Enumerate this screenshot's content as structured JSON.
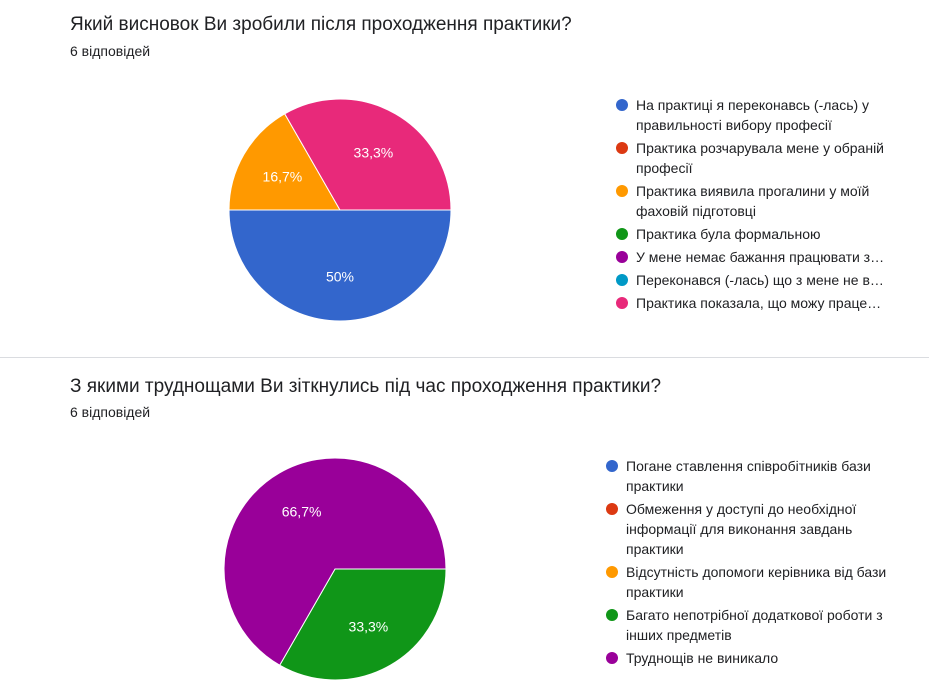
{
  "colors": {
    "blue": "#3366cc",
    "red": "#dc3912",
    "orange": "#ff9900",
    "green": "#109618",
    "purple": "#990099",
    "cyan": "#0099c6",
    "pink": "#dd4477"
  },
  "charts": [
    {
      "title": "Який висновок Ви зробили після проходження практики?",
      "responses": "6 відповідей",
      "chart_data": {
        "type": "pie",
        "legend_position": "right",
        "slices": [
          {
            "label": "На практиці я переконавсь (-лась) у правильності вибору професії",
            "display": "На практиці я переконавсь (-лась) у правильності вибору професії",
            "value": 50,
            "value_label": "50%",
            "color": "#3366cc"
          },
          {
            "label": "Практика розчарувала мене у обраній професії",
            "display": "Практика розчарувала мене у обраній професії",
            "value": 0,
            "value_label": "",
            "color": "#dc3912"
          },
          {
            "label": "Практика виявила прогалини у моїй фаховій підготовці",
            "display": "Практика виявила прогалини у моїй фаховій підготовці",
            "value": 16.7,
            "value_label": "16,7%",
            "color": "#ff9900"
          },
          {
            "label": "Практика була формальною",
            "display": "Практика була формальною",
            "value": 0,
            "value_label": "",
            "color": "#109618"
          },
          {
            "label": "У мене немає бажання працювати з...",
            "display": "У мене немає бажання працювати з…",
            "value": 0,
            "value_label": "",
            "color": "#990099"
          },
          {
            "label": "Переконався (-лась) що з мене не в...",
            "display": "Переконався (-лась) що з мене не в…",
            "value": 0,
            "value_label": "",
            "color": "#0099c6"
          },
          {
            "label": "Практика показала, що можу праце...",
            "display": "Практика показала, що можу праце…",
            "value": 33.3,
            "value_label": "33,3%",
            "color": "#e8297a"
          }
        ]
      }
    },
    {
      "title": "З якими труднощами Ви зіткнулись під час проходження практики?",
      "responses": "6 відповідей",
      "chart_data": {
        "type": "pie",
        "legend_position": "right",
        "slices": [
          {
            "label": "Погане ставлення співробітників бази практики",
            "display": "Погане ставлення співробітників бази практики",
            "value": 0,
            "value_label": "",
            "color": "#3366cc"
          },
          {
            "label": "Обмеження у доступі до необхідної інформації для виконання завдань практики",
            "display": "Обмеження у доступі до необхідної інформації для виконання завдань практики",
            "value": 0,
            "value_label": "",
            "color": "#dc3912"
          },
          {
            "label": "Відсутність допомоги керівника від бази практики",
            "display": "Відсутність допомоги керівника від бази практики",
            "value": 0,
            "value_label": "",
            "color": "#ff9900"
          },
          {
            "label": "Багато непотрібної додаткової роботи з інших предметів",
            "display": "Багато непотрібної додаткової роботи з інших предметів",
            "value": 33.3,
            "value_label": "33,3%",
            "color": "#109618"
          },
          {
            "label": "Труднощів не виникало",
            "display": "Труднощів не виникало",
            "value": 66.7,
            "value_label": "66,7%",
            "color": "#990099"
          }
        ]
      }
    }
  ]
}
